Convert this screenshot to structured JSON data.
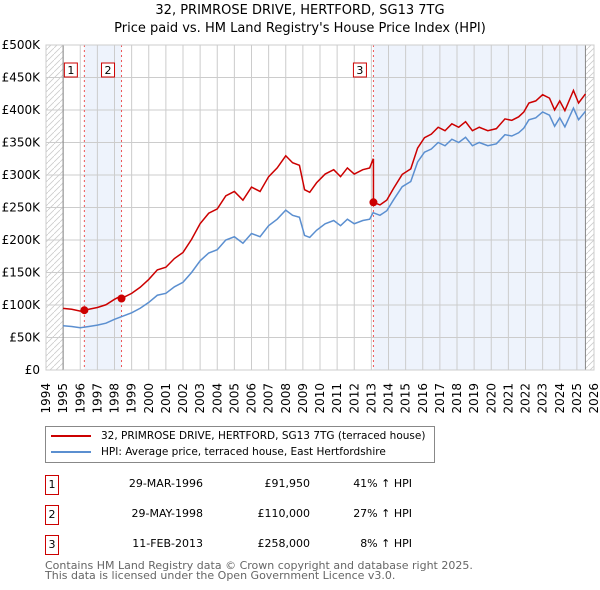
{
  "title": "32, PRIMROSE DRIVE, HERTFORD, SG13 7TG",
  "subtitle": "Price paid vs. HM Land Registry's House Price Index (HPI)",
  "chart_data": {
    "type": "line",
    "title": "32, PRIMROSE DRIVE, HERTFORD, SG13 7TG",
    "subtitle": "Price paid vs. HM Land Registry's House Price Index (HPI)",
    "xlim": [
      1994,
      2026
    ],
    "ylim": [
      0,
      500000
    ],
    "x_ticks": [
      "1994",
      "1995",
      "1996",
      "1997",
      "1998",
      "1999",
      "2000",
      "2001",
      "2002",
      "2003",
      "2004",
      "2005",
      "2006",
      "2007",
      "2008",
      "2009",
      "2010",
      "2011",
      "2012",
      "2013",
      "2014",
      "2015",
      "2016",
      "2017",
      "2018",
      "2019",
      "2020",
      "2021",
      "2022",
      "2023",
      "2024",
      "2025",
      "2026"
    ],
    "y_ticks": [
      {
        "v": 0,
        "label": "£0"
      },
      {
        "v": 50000,
        "label": "£50K"
      },
      {
        "v": 100000,
        "label": "£100K"
      },
      {
        "v": 150000,
        "label": "£150K"
      },
      {
        "v": 200000,
        "label": "£200K"
      },
      {
        "v": 250000,
        "label": "£250K"
      },
      {
        "v": 300000,
        "label": "£300K"
      },
      {
        "v": 350000,
        "label": "£350K"
      },
      {
        "v": 400000,
        "label": "£400K"
      },
      {
        "v": 450000,
        "label": "£450K"
      },
      {
        "v": 500000,
        "label": "£500K"
      }
    ],
    "grid": true,
    "data_range": [
      1995.0,
      2025.5
    ],
    "colors": {
      "price": "#cc0000",
      "hpi": "#5b8fd0",
      "shade": "#eef3fc"
    },
    "hpi_series": {
      "name": "HPI: Average price, terraced house, East Hertfordshire",
      "x": [
        1995.0,
        1995.5,
        1996.0,
        1996.5,
        1997.0,
        1997.5,
        1998.0,
        1998.5,
        1999.0,
        1999.5,
        2000.0,
        2000.5,
        2001.0,
        2001.5,
        2002.0,
        2002.5,
        2003.0,
        2003.5,
        2004.0,
        2004.5,
        2005.0,
        2005.5,
        2006.0,
        2006.5,
        2007.0,
        2007.5,
        2008.0,
        2008.4,
        2008.8,
        2009.1,
        2009.4,
        2009.8,
        2010.3,
        2010.8,
        2011.2,
        2011.6,
        2012.0,
        2012.5,
        2012.9,
        2013.1,
        2013.5,
        2013.9,
        2014.3,
        2014.8,
        2015.3,
        2015.7,
        2016.1,
        2016.5,
        2016.9,
        2017.3,
        2017.7,
        2018.1,
        2018.5,
        2018.9,
        2019.3,
        2019.8,
        2020.3,
        2020.8,
        2021.2,
        2021.6,
        2021.9,
        2022.2,
        2022.6,
        2023.0,
        2023.4,
        2023.7,
        2024.0,
        2024.3,
        2024.8,
        2025.1,
        2025.5
      ],
      "y": [
        68000,
        67000,
        65000,
        67000,
        69000,
        72000,
        78000,
        83000,
        88000,
        95000,
        104000,
        115000,
        118000,
        128000,
        135000,
        150000,
        168000,
        180000,
        185000,
        200000,
        205000,
        195000,
        210000,
        205000,
        222000,
        232000,
        246000,
        238000,
        235000,
        207000,
        204000,
        215000,
        225000,
        230000,
        222000,
        232000,
        225000,
        230000,
        232000,
        242000,
        238000,
        245000,
        262000,
        282000,
        290000,
        320000,
        335000,
        340000,
        350000,
        345000,
        355000,
        350000,
        358000,
        345000,
        350000,
        345000,
        348000,
        362000,
        360000,
        365000,
        372000,
        385000,
        388000,
        397000,
        392000,
        375000,
        388000,
        374000,
        403000,
        385000,
        398000
      ]
    },
    "price_series": {
      "name": "32, PRIMROSE DRIVE, HERTFORD, SG13 7TG (terraced house)"
    },
    "sales": [
      {
        "n": "1",
        "x": 1996.24,
        "date": "29-MAR-1996",
        "price": 91950,
        "price_label": "£91,950",
        "hpi_label": "41% ↑ HPI"
      },
      {
        "n": "2",
        "x": 1998.41,
        "date": "29-MAY-1998",
        "price": 110000,
        "price_label": "£110,000",
        "hpi_label": "27% ↑ HPI"
      },
      {
        "n": "3",
        "x": 2013.12,
        "date": "11-FEB-2013",
        "price": 258000,
        "price_label": "£258,000",
        "hpi_label": "8% ↑ HPI"
      }
    ]
  },
  "legend": {
    "price": "32, PRIMROSE DRIVE, HERTFORD, SG13 7TG (terraced house)",
    "hpi": "HPI: Average price, terraced house, East Hertfordshire"
  },
  "footer": {
    "line1": "Contains HM Land Registry data © Crown copyright and database right 2025.",
    "line2": "This data is licensed under the Open Government Licence v3.0."
  }
}
